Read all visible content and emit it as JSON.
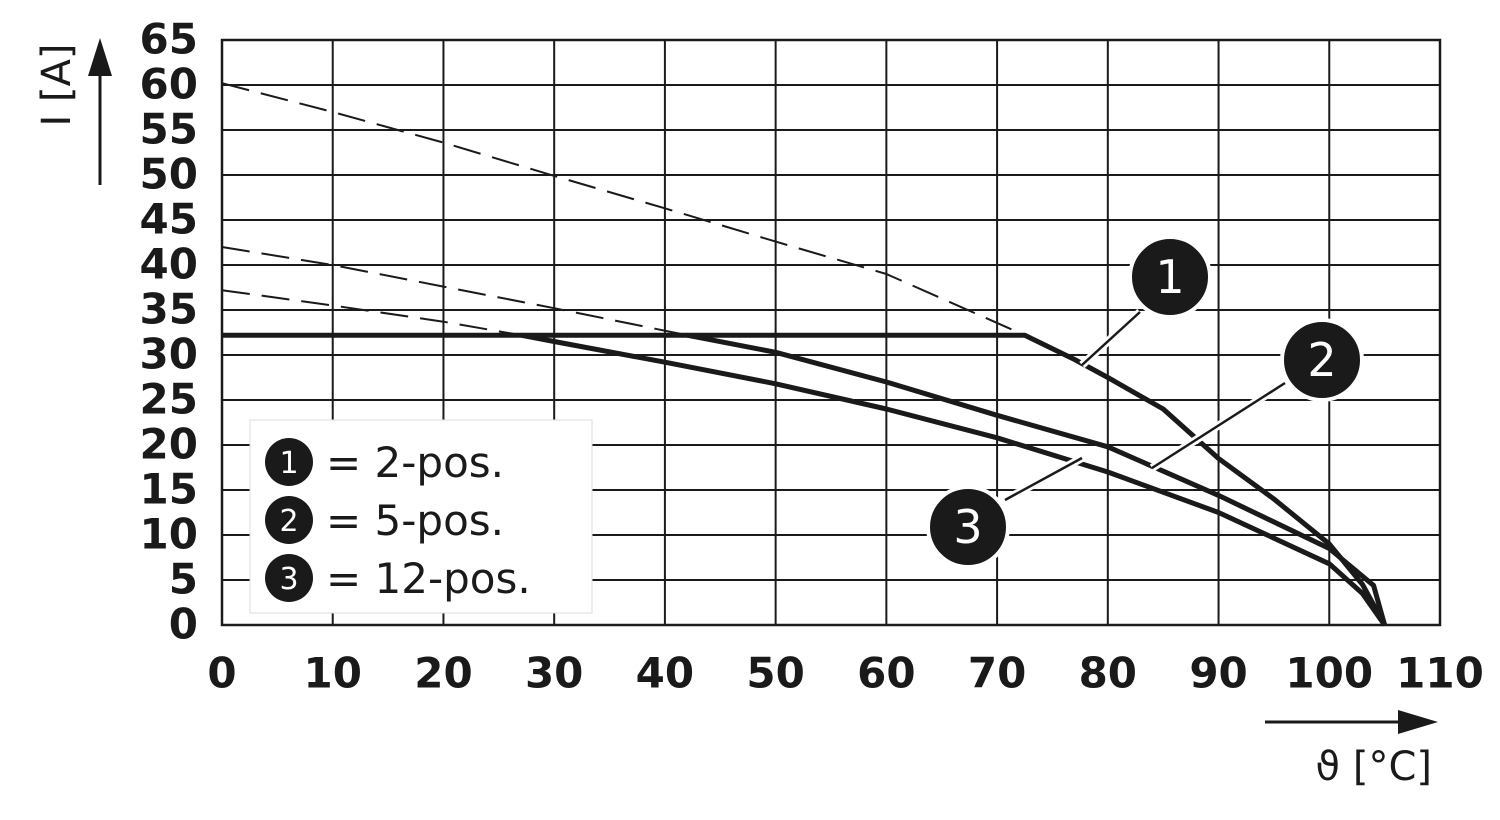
{
  "chart_data": {
    "type": "line",
    "xlabel": "ϑ [°C]",
    "ylabel": "I [A]",
    "xlim": [
      0,
      110
    ],
    "ylim": [
      0,
      65
    ],
    "xticks": [
      0,
      10,
      20,
      30,
      40,
      50,
      60,
      70,
      80,
      90,
      100,
      110
    ],
    "yticks": [
      0,
      5,
      10,
      15,
      20,
      25,
      30,
      35,
      40,
      45,
      50,
      55,
      60,
      65
    ],
    "grid": true,
    "series": [
      {
        "label": "1",
        "name": "= 2-pos.",
        "color": "#1a1a1a",
        "x": [
          0,
          72.5,
          77,
          80,
          85,
          90,
          95,
          100,
          103,
          105
        ],
        "values": [
          32.2,
          32.2,
          29.5,
          27.5,
          24,
          18.5,
          14,
          9,
          4.5,
          0
        ],
        "dash_x": [
          0,
          10,
          20,
          30,
          40,
          50,
          60,
          72.5
        ],
        "dash_values": [
          60.2,
          57,
          53.6,
          49.9,
          46.3,
          42.6,
          39,
          32.2
        ]
      },
      {
        "label": "2",
        "name": "= 5-pos.",
        "color": "#1a1a1a",
        "x": [
          42,
          50,
          60,
          70,
          80,
          90,
          100,
          104,
          105
        ],
        "values": [
          32.2,
          30.3,
          27,
          23.3,
          19.8,
          14.4,
          8.5,
          4.4,
          0
        ],
        "dash_x": [
          0,
          10,
          20,
          30,
          42
        ],
        "dash_values": [
          42,
          40,
          37.6,
          35.2,
          32.2
        ]
      },
      {
        "label": "3",
        "name": "= 12-pos.",
        "color": "#1a1a1a",
        "x": [
          27,
          30,
          40,
          50,
          60,
          70,
          80,
          90,
          100,
          103,
          105
        ],
        "values": [
          32.2,
          31.5,
          29.2,
          26.8,
          24,
          20.8,
          17,
          12.5,
          6.8,
          3.5,
          0
        ],
        "dash_x": [
          0,
          10,
          20,
          27
        ],
        "dash_values": [
          37.2,
          35.5,
          33.7,
          32.2
        ]
      }
    ]
  }
}
